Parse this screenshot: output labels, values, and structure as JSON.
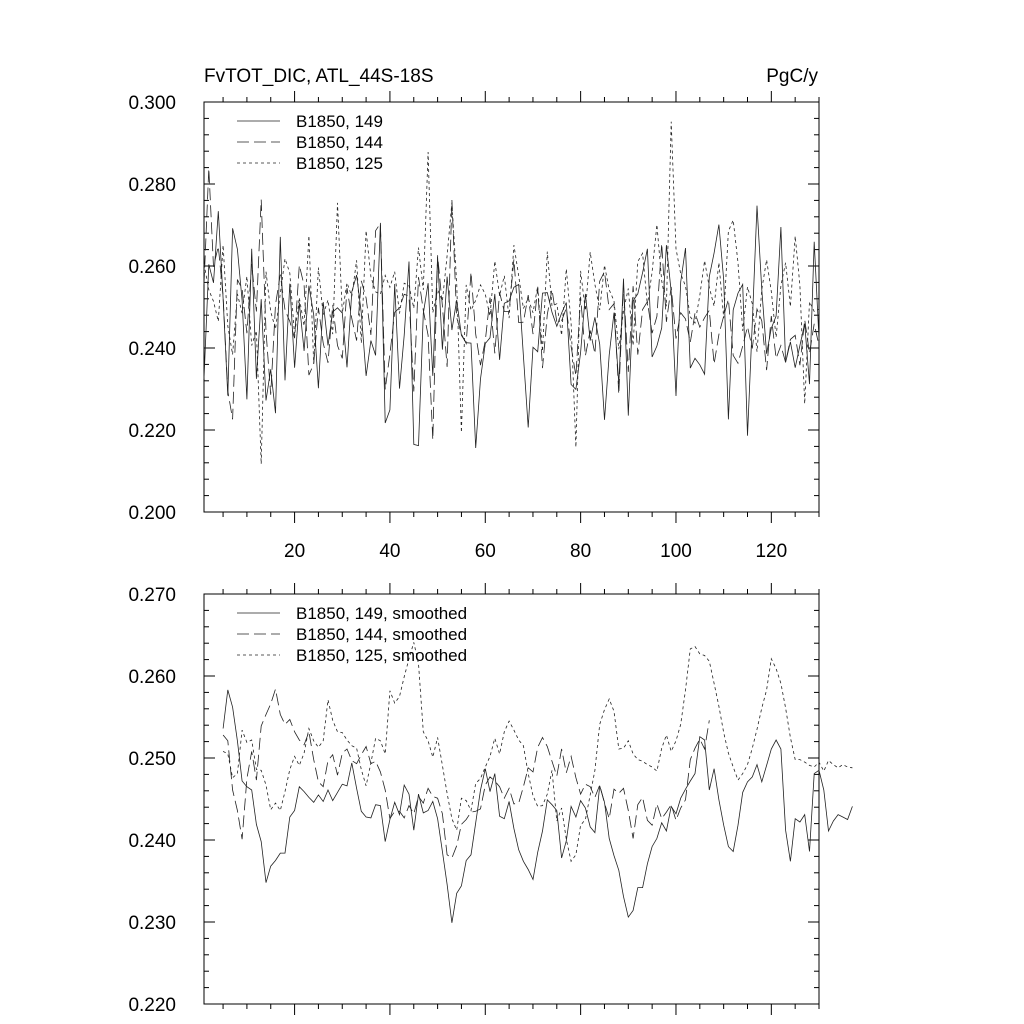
{
  "chart_data": [
    {
      "type": "line",
      "title": "FvTOT_DIC, ATL_44S-18S",
      "units": "PgC/y",
      "xlim": [
        1,
        130
      ],
      "ylim": [
        0.2,
        0.3
      ],
      "xticks": [
        20,
        40,
        60,
        80,
        100,
        120
      ],
      "xtick_labels": [
        "20",
        "40",
        "60",
        "80",
        "100",
        "120"
      ],
      "yticks": [
        0.2,
        0.22,
        0.24,
        0.26,
        0.28,
        0.3
      ],
      "ytick_labels": [
        "0.200",
        "0.220",
        "0.240",
        "0.260",
        "0.280",
        "0.300"
      ],
      "legend_position": "top-left",
      "grid": false,
      "series": [
        {
          "name": "B1850, 149",
          "dash": "solid",
          "values": [
            0.2325,
            0.2604,
            0.2559,
            0.2734,
            0.2521,
            0.2284,
            0.2692,
            0.2641,
            0.2516,
            0.2275,
            0.2642,
            0.2325,
            0.2519,
            0.2272,
            0.2348,
            0.2241,
            0.2671,
            0.2321,
            0.2557,
            0.2352,
            0.2511,
            0.2393,
            0.2552,
            0.2481,
            0.2302,
            0.2512,
            0.2406,
            0.2488,
            0.2498,
            0.2485,
            0.2353,
            0.2537,
            0.2578,
            0.2485,
            0.2332,
            0.2418,
            0.2382,
            0.2705,
            0.2217,
            0.2249,
            0.2556,
            0.2301,
            0.2431,
            0.2611,
            0.2165,
            0.2162,
            0.2484,
            0.2558,
            0.2332,
            0.2622,
            0.2396,
            0.2574,
            0.2444,
            0.2517,
            0.2431,
            0.2413,
            0.2412,
            0.2156,
            0.2325,
            0.2411,
            0.2425,
            0.2532,
            0.2371,
            0.2509,
            0.2515,
            0.2548,
            0.2555,
            0.2381,
            0.2206,
            0.2402,
            0.2391,
            0.2534,
            0.2535,
            0.2487,
            0.2453,
            0.2485,
            0.2511,
            0.2311,
            0.2299,
            0.2389,
            0.2532,
            0.2418,
            0.2475,
            0.2409,
            0.2225,
            0.2383,
            0.2486,
            0.2312,
            0.2569,
            0.2235,
            0.2515,
            0.2532,
            0.2584,
            0.2642,
            0.2378,
            0.2405,
            0.2449,
            0.2651,
            0.2537,
            0.2283,
            0.2561,
            0.2644,
            0.2351,
            0.2375,
            0.2359,
            0.2336,
            0.2574,
            0.2632,
            0.2701,
            0.2566,
            0.2226,
            0.2493,
            0.2534,
            0.2555,
            0.2186,
            0.2461,
            0.2747,
            0.2542,
            0.2386,
            0.2448,
            0.2478,
            0.2695,
            0.2365,
            0.2415,
            0.2352,
            0.2406,
            0.2459,
            0.2312,
            0.2659,
            0.2422
          ]
        },
        {
          "name": "B1850, 144",
          "dash": "long-dash",
          "values": [
            0.2555,
            0.2838,
            0.2598,
            0.2648,
            0.2526,
            0.2295,
            0.2226,
            0.2567,
            0.2544,
            0.2436,
            0.2605,
            0.2489,
            0.2762,
            0.2441,
            0.2286,
            0.2506,
            0.2579,
            0.2493,
            0.2465,
            0.2424,
            0.2602,
            0.2553,
            0.2334,
            0.2361,
            0.2498,
            0.2412,
            0.2364,
            0.2505,
            0.2406,
            0.2375,
            0.2546,
            0.2472,
            0.2418,
            0.2564,
            0.2522,
            0.2432,
            0.2686,
            0.2704,
            0.2299,
            0.2385,
            0.2487,
            0.2498,
            0.2531,
            0.2526,
            0.2294,
            0.2573,
            0.2492,
            0.2431,
            0.2176,
            0.2626,
            0.2503,
            0.2354,
            0.2761,
            0.2474,
            0.2434,
            0.2411,
            0.2585,
            0.2434,
            0.2358,
            0.2418,
            0.2523,
            0.2387,
            0.2535,
            0.2489,
            0.2489,
            0.2616,
            0.2462,
            0.2463,
            0.2529,
            0.2434,
            0.2547,
            0.2351,
            0.2482,
            0.2543,
            0.2464,
            0.2466,
            0.2497,
            0.2404,
            0.2332,
            0.2525,
            0.2381,
            0.2443,
            0.2386,
            0.2563,
            0.2586,
            0.2494,
            0.2508,
            0.2287,
            0.2553,
            0.2342,
            0.2551,
            0.2384,
            0.2494,
            0.2513,
            0.2436,
            0.2477,
            0.2655,
            0.2464,
            0.2549,
            0.2423,
            0.2486,
            0.2471,
            0.2414,
            0.2485,
            0.2451,
            0.2474,
            0.2492,
            0.2361,
            0.2433,
            0.2478,
            0.2519,
            0.2382,
            0.2363,
            0.2405,
            0.2452,
            0.2399,
            0.2495,
            0.2466,
            0.2346,
            0.2478,
            0.2375,
            0.2406,
            0.2365,
            0.2421,
            0.2431,
            0.2358,
            0.2469,
            0.2387,
            0.2459,
            0.2406
          ]
        },
        {
          "name": "B1850, 125",
          "dash": "short-dash",
          "values": [
            0.2605,
            0.2542,
            0.2514,
            0.2465,
            0.2651,
            0.2454,
            0.2384,
            0.2532,
            0.2485,
            0.2575,
            0.2406,
            0.2442,
            0.2117,
            0.2586,
            0.2489,
            0.2446,
            0.2532,
            0.2618,
            0.2583,
            0.2431,
            0.2523,
            0.2454,
            0.2674,
            0.2362,
            0.2596,
            0.2481,
            0.2517,
            0.2434,
            0.2754,
            0.2485,
            0.2559,
            0.2526,
            0.2614,
            0.2412,
            0.2686,
            0.2574,
            0.2537,
            0.2531,
            0.2577,
            0.2548,
            0.2586,
            0.2484,
            0.2558,
            0.2552,
            0.2497,
            0.2645,
            0.2542,
            0.2878,
            0.2486,
            0.2542,
            0.2515,
            0.2625,
            0.2755,
            0.2558,
            0.2194,
            0.2554,
            0.2492,
            0.2516,
            0.2554,
            0.2531,
            0.2478,
            0.2612,
            0.2528,
            0.2576,
            0.2473,
            0.2651,
            0.2576,
            0.2496,
            0.2521,
            0.2486,
            0.2551,
            0.2392,
            0.2635,
            0.2502,
            0.2508,
            0.2431,
            0.2593,
            0.2461,
            0.2158,
            0.2588,
            0.2491,
            0.2634,
            0.2555,
            0.2493,
            0.2602,
            0.2542,
            0.2515,
            0.2397,
            0.2491,
            0.2545,
            0.2406,
            0.2611,
            0.2631,
            0.2504,
            0.2585,
            0.2701,
            0.2564,
            0.2502,
            0.2952,
            0.2642,
            0.2581,
            0.2551,
            0.2476,
            0.2461,
            0.2528,
            0.2613,
            0.2548,
            0.2502,
            0.2608,
            0.2473,
            0.2685,
            0.2712,
            0.2608,
            0.2442,
            0.2549,
            0.2508,
            0.2391,
            0.2543,
            0.2615,
            0.2538,
            0.2426,
            0.2552,
            0.2608,
            0.2501,
            0.2673,
            0.2553,
            0.2264,
            0.2513,
            0.2489,
            0.2495
          ]
        }
      ]
    },
    {
      "type": "line",
      "xlim": [
        1,
        130
      ],
      "ylim": [
        0.22,
        0.27
      ],
      "xticks": [
        20,
        40,
        60,
        80,
        100,
        120
      ],
      "xtick_labels": [],
      "yticks": [
        0.22,
        0.23,
        0.24,
        0.25,
        0.26,
        0.27
      ],
      "ytick_labels": [
        "0.220",
        "0.230",
        "0.240",
        "0.250",
        "0.260",
        "0.270"
      ],
      "legend_position": "top-left",
      "grid": false,
      "series": [
        {
          "name": "B1850, 149, smoothed",
          "dash": "solid",
          "x_start": 5,
          "values": [
            0.2536,
            0.2583,
            0.2562,
            0.2521,
            0.2472,
            0.2465,
            0.2461,
            0.2419,
            0.2398,
            0.2348,
            0.2368,
            0.2375,
            0.2384,
            0.2384,
            0.2428,
            0.2436,
            0.2465,
            0.2459,
            0.2452,
            0.2446,
            0.2455,
            0.2447,
            0.2461,
            0.2448,
            0.2458,
            0.2468,
            0.2466,
            0.2494,
            0.2463,
            0.2435,
            0.2428,
            0.2427,
            0.2443,
            0.2442,
            0.2398,
            0.2425,
            0.2446,
            0.2431,
            0.2467,
            0.2456,
            0.2412,
            0.2456,
            0.2433,
            0.2436,
            0.2447,
            0.2426,
            0.2386,
            0.2346,
            0.2299,
            0.2335,
            0.2344,
            0.2375,
            0.2382,
            0.2421,
            0.2461,
            0.2487,
            0.2459,
            0.2481,
            0.2429,
            0.2426,
            0.2447,
            0.2414,
            0.2388,
            0.2374,
            0.2364,
            0.2352,
            0.2385,
            0.2411,
            0.2449,
            0.2443,
            0.2436,
            0.2378,
            0.2399,
            0.2441,
            0.2428,
            0.2448,
            0.2439,
            0.2416,
            0.2409,
            0.2466,
            0.2446,
            0.2402,
            0.2381,
            0.2363,
            0.2331,
            0.2306,
            0.2314,
            0.2342,
            0.2342,
            0.2371,
            0.2392,
            0.2402,
            0.2421,
            0.2411,
            0.2441,
            0.2432,
            0.2451,
            0.2462,
            0.2472,
            0.2481,
            0.2526,
            0.2522,
            0.2461,
            0.2487,
            0.2449,
            0.2418,
            0.2392,
            0.2386,
            0.2418,
            0.2458,
            0.2471,
            0.2477,
            0.2492,
            0.2471,
            0.2491,
            0.2511,
            0.2522,
            0.2511,
            0.2412,
            0.2374,
            0.2426,
            0.2422,
            0.2431,
            0.2386,
            0.2481,
            0.2485,
            0.2461,
            0.2411,
            0.2423,
            0.2431,
            0.2428,
            0.2425,
            0.2441
          ]
        },
        {
          "name": "B1850, 144, smoothed",
          "dash": "long-dash",
          "x_start": 5,
          "values": [
            0.2528,
            0.2521,
            0.2461,
            0.2436,
            0.2401,
            0.2475,
            0.2508,
            0.2473,
            0.2539,
            0.2553,
            0.2566,
            0.2584,
            0.2553,
            0.2541,
            0.2547,
            0.2532,
            0.2522,
            0.2516,
            0.2532,
            0.2498,
            0.2471,
            0.2465,
            0.2497,
            0.2504,
            0.2479,
            0.2506,
            0.2511,
            0.2497,
            0.2493,
            0.2504,
            0.2514,
            0.2493,
            0.2496,
            0.2483,
            0.2461,
            0.2426,
            0.2435,
            0.2435,
            0.2427,
            0.2442,
            0.2432,
            0.2453,
            0.2445,
            0.2463,
            0.2453,
            0.2451,
            0.2432,
            0.2382,
            0.2378,
            0.2393,
            0.2419,
            0.2425,
            0.2434,
            0.2435,
            0.2438,
            0.2467,
            0.2477,
            0.2472,
            0.2465,
            0.2451,
            0.2463,
            0.2444,
            0.2445,
            0.2465,
            0.2488,
            0.2483,
            0.2513,
            0.2525,
            0.2514,
            0.2496,
            0.2478,
            0.2511,
            0.2482,
            0.2502,
            0.2476,
            0.2456,
            0.2468,
            0.2465,
            0.2452,
            0.2467,
            0.2445,
            0.2426,
            0.2462,
            0.2457,
            0.2463,
            0.2436,
            0.2402,
            0.2443,
            0.2452,
            0.2424,
            0.2418,
            0.2444,
            0.2426,
            0.2434,
            0.2443,
            0.2424,
            0.2439,
            0.2449,
            0.2498,
            0.2512,
            0.2523,
            0.2511,
            0.2546
          ]
        },
        {
          "name": "B1850, 125, smoothed",
          "dash": "short-dash",
          "x_start": 5,
          "values": [
            0.2508,
            0.2505,
            0.2476,
            0.2481,
            0.2534,
            0.2519,
            0.2522,
            0.2486,
            0.2485,
            0.2467,
            0.2437,
            0.2445,
            0.2436,
            0.2459,
            0.2486,
            0.2502,
            0.2491,
            0.2506,
            0.2536,
            0.2521,
            0.2513,
            0.2521,
            0.2571,
            0.2546,
            0.2532,
            0.2531,
            0.2522,
            0.2515,
            0.2512,
            0.2486,
            0.2466,
            0.2494,
            0.2524,
            0.2521,
            0.2505,
            0.2582,
            0.2567,
            0.2575,
            0.2599,
            0.2621,
            0.2641,
            0.2615,
            0.2532,
            0.2521,
            0.2501,
            0.2525,
            0.2491,
            0.2457,
            0.2426,
            0.2412,
            0.2451,
            0.2448,
            0.2436,
            0.2469,
            0.2475,
            0.2489,
            0.2502,
            0.2524,
            0.2505,
            0.2532,
            0.2545,
            0.2534,
            0.2522,
            0.2515,
            0.2481,
            0.2454,
            0.2441,
            0.2442,
            0.2456,
            0.2485,
            0.2423,
            0.2439,
            0.2401,
            0.2374,
            0.2382,
            0.2418,
            0.2425,
            0.2455,
            0.2485,
            0.2541,
            0.2559,
            0.2572,
            0.2557,
            0.2511,
            0.2512,
            0.2521,
            0.2505,
            0.2498,
            0.2496,
            0.2492,
            0.2489,
            0.2484,
            0.2512,
            0.2528,
            0.2508,
            0.2521,
            0.2541,
            0.2583,
            0.2633,
            0.2636,
            0.2627,
            0.2625,
            0.2618,
            0.2591,
            0.2563,
            0.2531,
            0.2506,
            0.2489,
            0.2473,
            0.2481,
            0.2492,
            0.2512,
            0.2535,
            0.2561,
            0.2583,
            0.2621,
            0.2609,
            0.2591,
            0.2561,
            0.2525,
            0.2498,
            0.2498,
            0.2495,
            0.2491,
            0.2489,
            0.2495,
            0.2484,
            0.2497,
            0.2492,
            0.2488,
            0.2492,
            0.2489,
            0.2488
          ]
        }
      ]
    }
  ]
}
